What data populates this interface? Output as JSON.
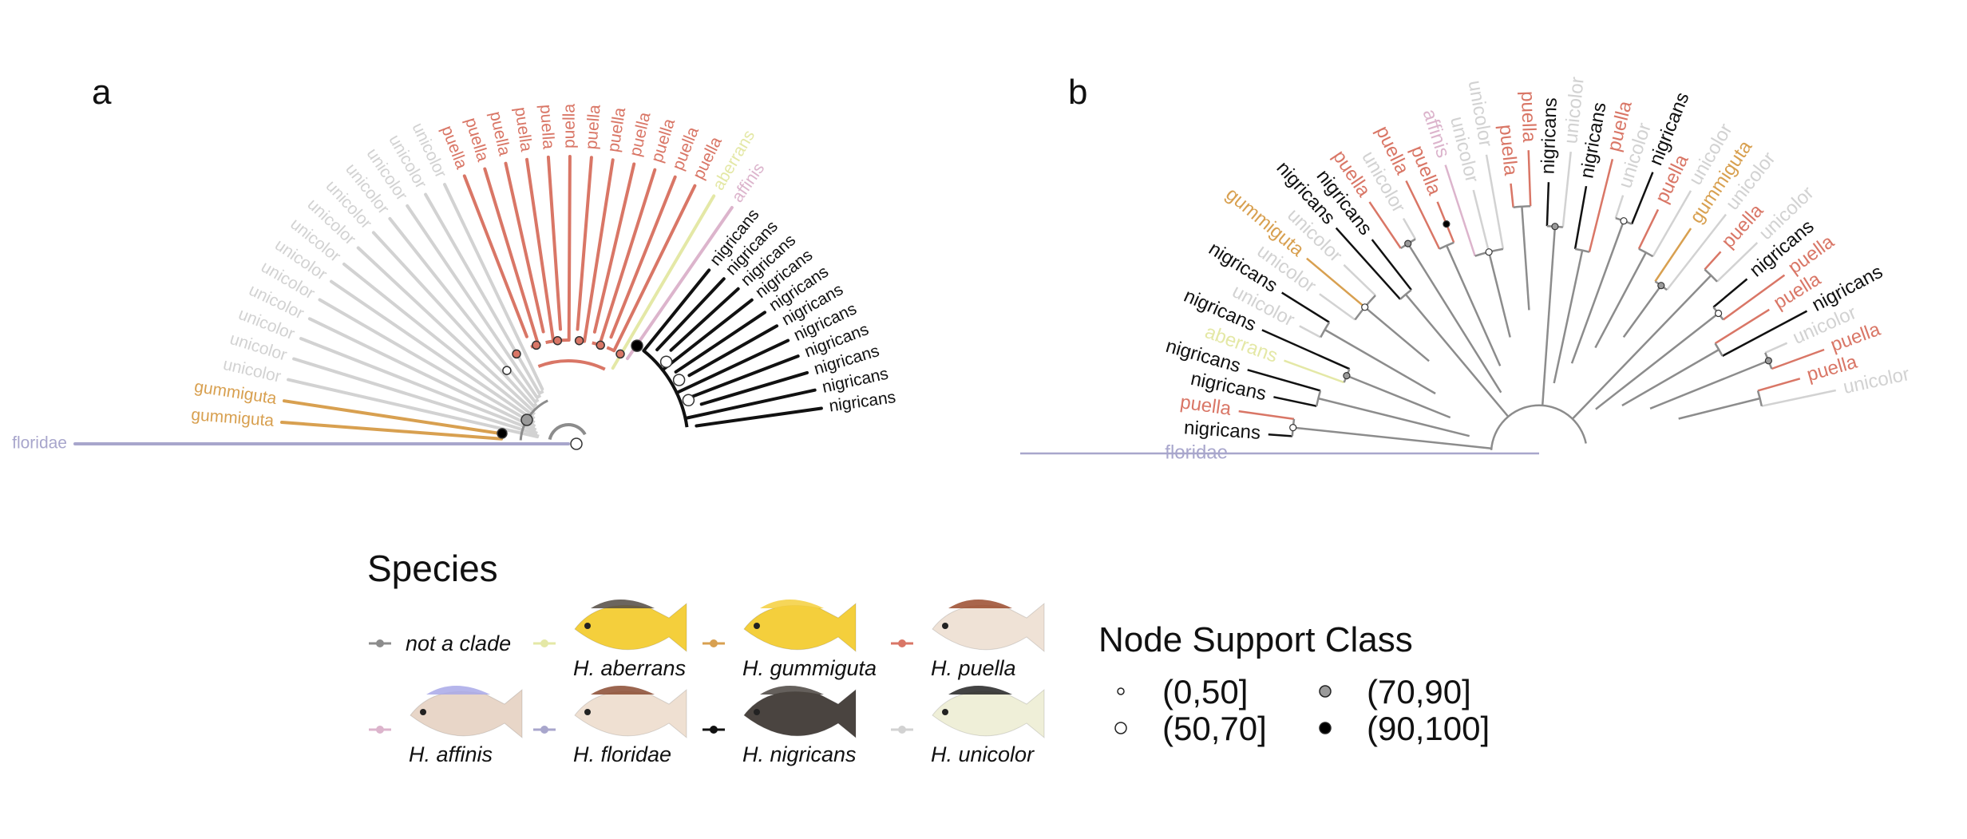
{
  "panels": {
    "a": "a",
    "b": "b"
  },
  "colors": {
    "floridae": "#a8a6cc",
    "gummiguta": "#d8a050",
    "unicolor": "#d2d2d2",
    "puella": "#d97666",
    "aberrans": "#e4e8a6",
    "affinis": "#dcb4cc",
    "nigricans": "#111111",
    "notclade": "#8c8c8c"
  },
  "tree_a": {
    "tips": [
      {
        "label": "floridae",
        "sp": "floridae"
      },
      {
        "label": "gummiguta",
        "sp": "gummiguta"
      },
      {
        "label": "gummiguta",
        "sp": "gummiguta"
      },
      {
        "label": "unicolor",
        "sp": "unicolor"
      },
      {
        "label": "unicolor",
        "sp": "unicolor"
      },
      {
        "label": "unicolor",
        "sp": "unicolor"
      },
      {
        "label": "unicolor",
        "sp": "unicolor"
      },
      {
        "label": "unicolor",
        "sp": "unicolor"
      },
      {
        "label": "unicolor",
        "sp": "unicolor"
      },
      {
        "label": "unicolor",
        "sp": "unicolor"
      },
      {
        "label": "unicolor",
        "sp": "unicolor"
      },
      {
        "label": "unicolor",
        "sp": "unicolor"
      },
      {
        "label": "unicolor",
        "sp": "unicolor"
      },
      {
        "label": "unicolor",
        "sp": "unicolor"
      },
      {
        "label": "unicolor",
        "sp": "unicolor"
      },
      {
        "label": "unicolor",
        "sp": "unicolor"
      },
      {
        "label": "puella",
        "sp": "puella"
      },
      {
        "label": "puella",
        "sp": "puella"
      },
      {
        "label": "puella",
        "sp": "puella"
      },
      {
        "label": "puella",
        "sp": "puella"
      },
      {
        "label": "puella",
        "sp": "puella"
      },
      {
        "label": "puella",
        "sp": "puella"
      },
      {
        "label": "puella",
        "sp": "puella"
      },
      {
        "label": "puella",
        "sp": "puella"
      },
      {
        "label": "puella",
        "sp": "puella"
      },
      {
        "label": "puella",
        "sp": "puella"
      },
      {
        "label": "puella",
        "sp": "puella"
      },
      {
        "label": "puella",
        "sp": "puella"
      },
      {
        "label": "aberrans",
        "sp": "aberrans"
      },
      {
        "label": "affinis",
        "sp": "affinis"
      },
      {
        "label": "nigricans",
        "sp": "nigricans"
      },
      {
        "label": "nigricans",
        "sp": "nigricans"
      },
      {
        "label": "nigricans",
        "sp": "nigricans"
      },
      {
        "label": "nigricans",
        "sp": "nigricans"
      },
      {
        "label": "nigricans",
        "sp": "nigricans"
      },
      {
        "label": "nigricans",
        "sp": "nigricans"
      },
      {
        "label": "nigricans",
        "sp": "nigricans"
      },
      {
        "label": "nigricans",
        "sp": "nigricans"
      },
      {
        "label": "nigricans",
        "sp": "nigricans"
      },
      {
        "label": "nigricans",
        "sp": "nigricans"
      },
      {
        "label": "nigricans",
        "sp": "nigricans"
      }
    ]
  },
  "tree_b": {
    "tips": [
      {
        "label": "floridae",
        "sp": "floridae"
      },
      {
        "label": "nigricans",
        "sp": "nigricans"
      },
      {
        "label": "puella",
        "sp": "puella"
      },
      {
        "label": "nigricans",
        "sp": "nigricans"
      },
      {
        "label": "nigricans",
        "sp": "nigricans"
      },
      {
        "label": "aberrans",
        "sp": "aberrans"
      },
      {
        "label": "nigricans",
        "sp": "nigricans"
      },
      {
        "label": "unicolor",
        "sp": "unicolor"
      },
      {
        "label": "nigricans",
        "sp": "nigricans"
      },
      {
        "label": "unicolor",
        "sp": "unicolor"
      },
      {
        "label": "gummiguta",
        "sp": "gummiguta"
      },
      {
        "label": "unicolor",
        "sp": "unicolor"
      },
      {
        "label": "nigricans",
        "sp": "nigricans"
      },
      {
        "label": "nigricans",
        "sp": "nigricans"
      },
      {
        "label": "puella",
        "sp": "puella"
      },
      {
        "label": "unicolor",
        "sp": "unicolor"
      },
      {
        "label": "puella",
        "sp": "puella"
      },
      {
        "label": "puella",
        "sp": "puella"
      },
      {
        "label": "affinis",
        "sp": "affinis"
      },
      {
        "label": "unicolor",
        "sp": "unicolor"
      },
      {
        "label": "unicolor",
        "sp": "unicolor"
      },
      {
        "label": "puella",
        "sp": "puella"
      },
      {
        "label": "puella",
        "sp": "puella"
      },
      {
        "label": "nigricans",
        "sp": "nigricans"
      },
      {
        "label": "unicolor",
        "sp": "unicolor"
      },
      {
        "label": "nigricans",
        "sp": "nigricans"
      },
      {
        "label": "puella",
        "sp": "puella"
      },
      {
        "label": "unicolor",
        "sp": "unicolor"
      },
      {
        "label": "nigricans",
        "sp": "nigricans"
      },
      {
        "label": "puella",
        "sp": "puella"
      },
      {
        "label": "unicolor",
        "sp": "unicolor"
      },
      {
        "label": "gummiguta",
        "sp": "gummiguta"
      },
      {
        "label": "unicolor",
        "sp": "unicolor"
      },
      {
        "label": "puella",
        "sp": "puella"
      },
      {
        "label": "unicolor",
        "sp": "unicolor"
      },
      {
        "label": "nigricans",
        "sp": "nigricans"
      },
      {
        "label": "puella",
        "sp": "puella"
      },
      {
        "label": "puella",
        "sp": "puella"
      },
      {
        "label": "nigricans",
        "sp": "nigricans"
      },
      {
        "label": "unicolor",
        "sp": "unicolor"
      },
      {
        "label": "puella",
        "sp": "puella"
      },
      {
        "label": "puella",
        "sp": "puella"
      },
      {
        "label": "unicolor",
        "sp": "unicolor"
      }
    ]
  },
  "legend": {
    "title": "Species",
    "items": [
      {
        "key": "notclade",
        "label": "not a clade",
        "fish": false
      },
      {
        "key": "aberrans",
        "label": "H. aberrans",
        "fish": true,
        "body": "#f4cf3c",
        "accent": "#524a42"
      },
      {
        "key": "gummiguta",
        "label": "H. gummiguta",
        "fish": true,
        "body": "#f4cf3c",
        "accent": "#f4cf3c"
      },
      {
        "key": "puella",
        "label": "H. puella",
        "fish": true,
        "body": "#efe2d6",
        "accent": "#9a4a2c"
      },
      {
        "key": "affinis",
        "label": "H. affinis",
        "fish": true,
        "body": "#e8d6c8",
        "accent": "#a8a8e8"
      },
      {
        "key": "floridae",
        "label": "H. floridae",
        "fish": true,
        "body": "#efe0d2",
        "accent": "#8a4a30"
      },
      {
        "key": "nigricans",
        "label": "H. nigricans",
        "fish": true,
        "body": "#4a4440",
        "accent": "#4a4440"
      },
      {
        "key": "unicolor",
        "label": "H. unicolor",
        "fish": true,
        "body": "#efefd8",
        "accent": "#222222"
      }
    ]
  },
  "node_support": {
    "title": "Node Support Class",
    "classes": [
      {
        "label": "(0,50]",
        "fill": "#ffffff",
        "r": 4
      },
      {
        "label": "(70,90]",
        "fill": "#9a9a9a",
        "r": 7
      },
      {
        "label": "(50,70]",
        "fill": "#ffffff",
        "r": 7
      },
      {
        "label": "(90,100]",
        "fill": "#000000",
        "r": 7
      }
    ]
  }
}
